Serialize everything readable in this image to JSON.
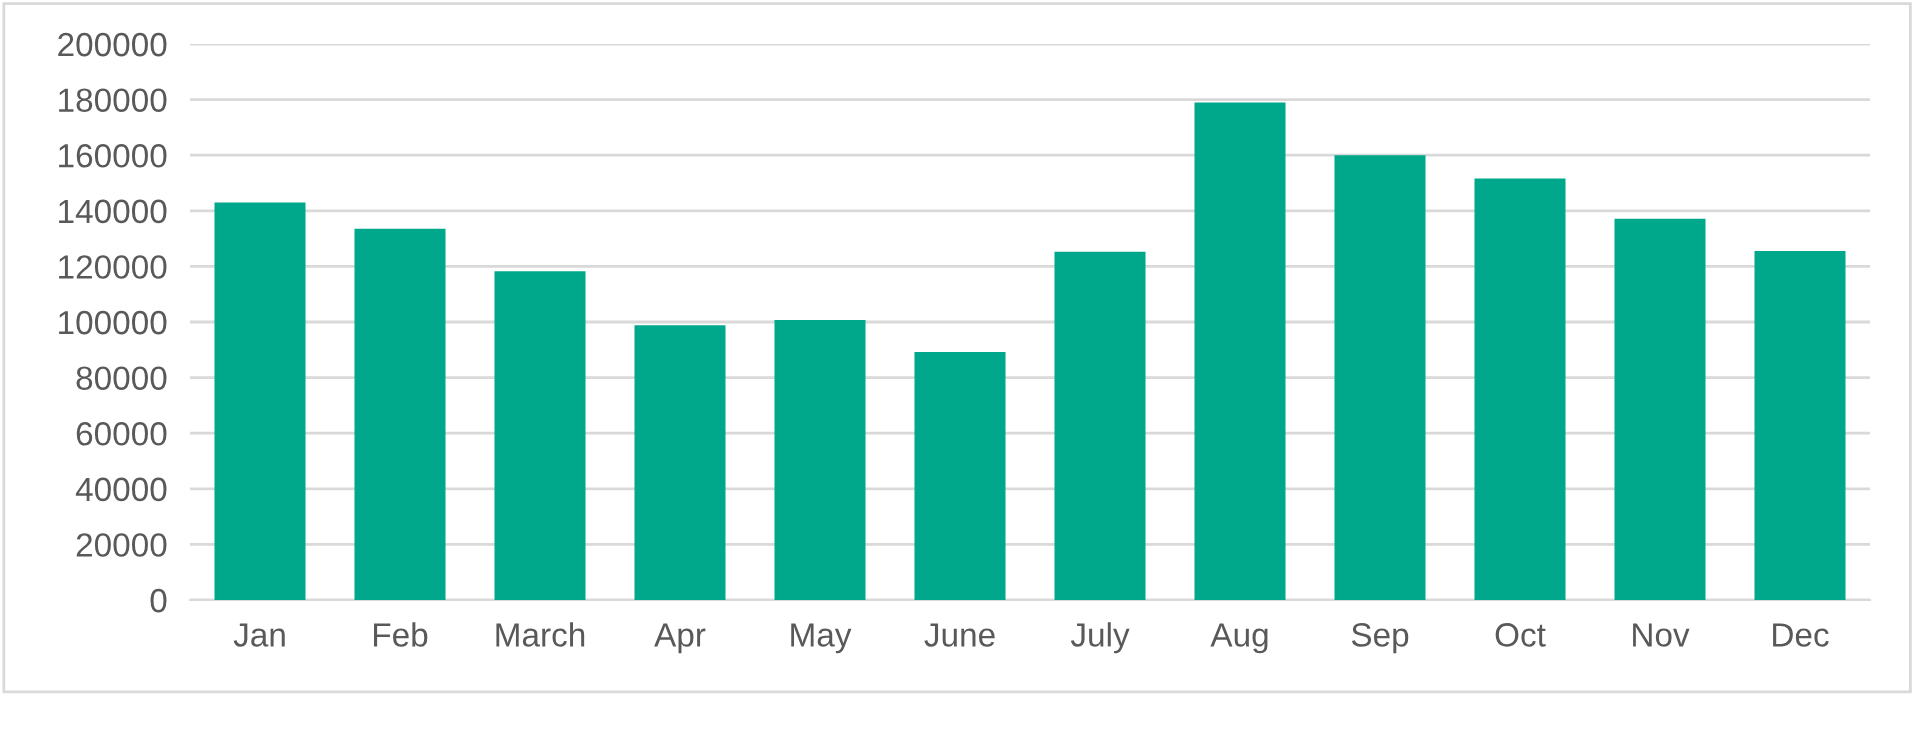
{
  "chart_data": {
    "type": "bar",
    "categories": [
      "Jan",
      "Feb",
      "March",
      "Apr",
      "May",
      "June",
      "July",
      "Aug",
      "Sep",
      "Oct",
      "Nov",
      "Dec"
    ],
    "values": [
      143000,
      133500,
      118300,
      98800,
      100700,
      89200,
      125300,
      179000,
      160000,
      151600,
      137100,
      125500
    ],
    "color": "#00a88b",
    "ylim": [
      0,
      200000
    ],
    "yticks": [
      0,
      20000,
      40000,
      60000,
      80000,
      100000,
      120000,
      140000,
      160000,
      180000,
      200000
    ],
    "grid": "y",
    "legend": false
  }
}
